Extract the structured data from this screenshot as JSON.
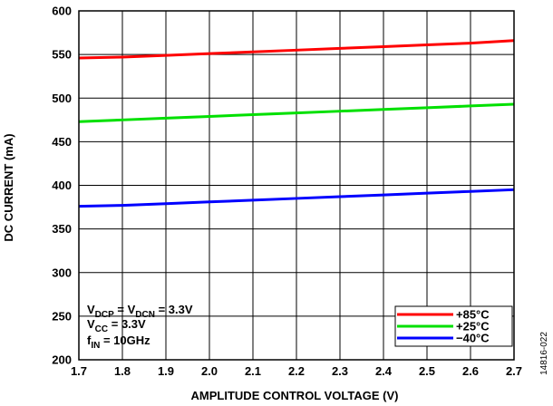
{
  "chart_data": {
    "type": "line",
    "title": "",
    "xlabel": "AMPLITUDE CONTROL VOLTAGE (V)",
    "ylabel": "DC CURRENT (mA)",
    "xlim": [
      1.7,
      2.7
    ],
    "ylim": [
      200,
      600
    ],
    "xticks": [
      "1.7",
      "1.8",
      "1.9",
      "2.0",
      "2.1",
      "2.2",
      "2.3",
      "2.4",
      "2.5",
      "2.6",
      "2.7"
    ],
    "yticks": [
      "200",
      "250",
      "300",
      "350",
      "400",
      "450",
      "500",
      "550",
      "600"
    ],
    "grid": true,
    "legend_position": "bottom-right",
    "x": [
      1.7,
      1.8,
      1.9,
      2.0,
      2.1,
      2.2,
      2.3,
      2.4,
      2.5,
      2.6,
      2.7
    ],
    "series": [
      {
        "name": "+85°C",
        "color": "#ff0000",
        "values": [
          546,
          547,
          549,
          551,
          553,
          555,
          557,
          559,
          561,
          563,
          566
        ]
      },
      {
        "name": "+25°C",
        "color": "#00e000",
        "values": [
          473,
          475,
          477,
          479,
          481,
          483,
          485,
          487,
          489,
          491,
          493
        ]
      },
      {
        "name": "−40°C",
        "color": "#0000ff",
        "values": [
          376,
          377,
          379,
          381,
          383,
          385,
          387,
          389,
          391,
          393,
          395
        ]
      }
    ],
    "annotations": [
      {
        "main": "V",
        "sub": "DCP",
        "mid": " = V",
        "sub2": "DCN",
        "tail": " = 3.3V"
      },
      {
        "main": "V",
        "sub": "CC",
        "mid": " = 3.3V",
        "sub2": "",
        "tail": ""
      },
      {
        "main": "f",
        "sub": "IN",
        "mid": " = 10GHz",
        "sub2": "",
        "tail": ""
      }
    ],
    "side_label": "14816-022"
  }
}
